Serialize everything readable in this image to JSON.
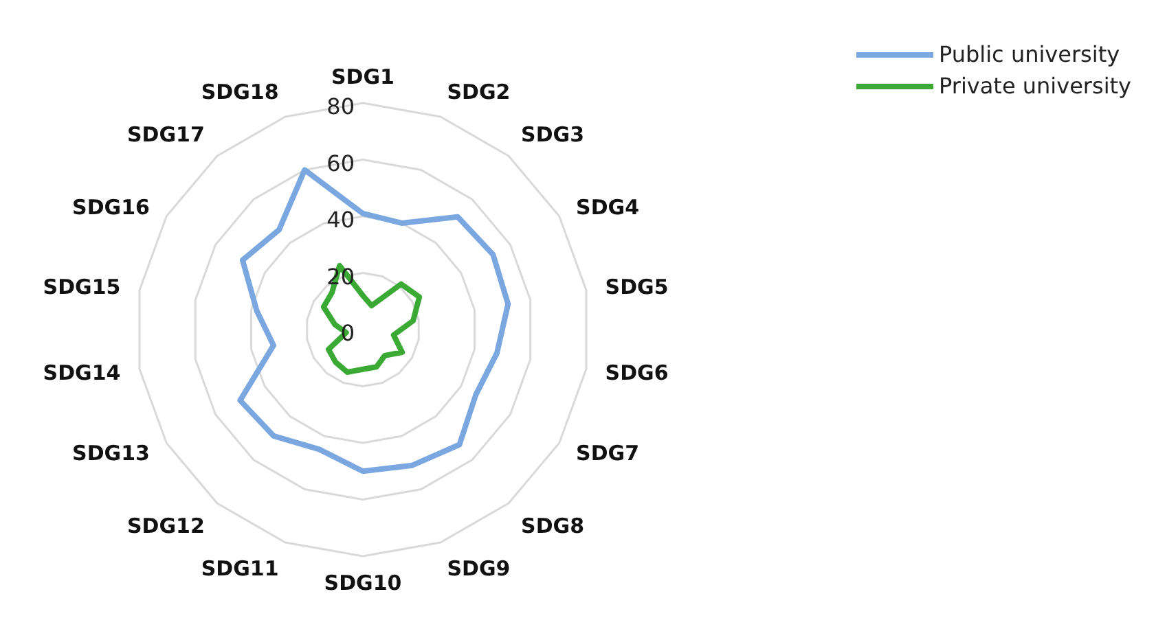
{
  "chart_data": {
    "type": "radar",
    "categories": [
      "SDG1",
      "SDG2",
      "SDG3",
      "SDG4",
      "SDG5",
      "SDG6",
      "SDG7",
      "SDG8",
      "SDG9",
      "SDG10",
      "SDG11",
      "SDG12",
      "SDG13",
      "SDG14",
      "SDG15",
      "SDG16",
      "SDG17",
      "SDG18"
    ],
    "series": [
      {
        "name": "Public university",
        "color": "#7ba7e0",
        "values": [
          41,
          40,
          52,
          53,
          52,
          48,
          46,
          53,
          51,
          50,
          45,
          49,
          50,
          32,
          38,
          49,
          46,
          60
        ]
      },
      {
        "name": "Private university",
        "color": "#3aaa35",
        "values": [
          12,
          9,
          21,
          23,
          18,
          11,
          16,
          12,
          14,
          14,
          16,
          15,
          14,
          6,
          10,
          16,
          17,
          24
        ]
      }
    ],
    "ylim": [
      0,
      80
    ],
    "yticks": [
      0,
      20,
      40,
      60,
      80
    ],
    "grid": true,
    "legend": "top right"
  }
}
